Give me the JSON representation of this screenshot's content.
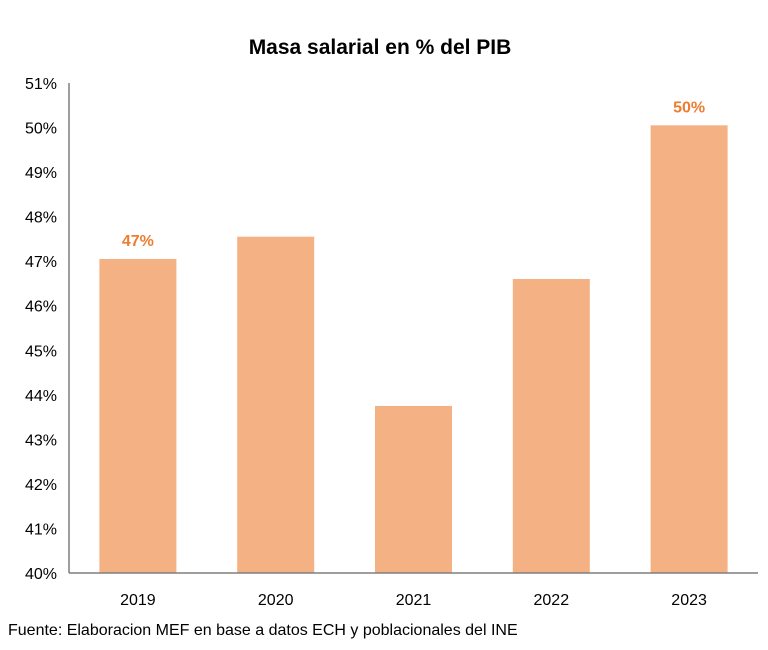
{
  "chart_data": {
    "type": "bar",
    "title": "Masa salarial en % del PIB",
    "xlabel": "",
    "ylabel": "",
    "categories": [
      "2019",
      "2020",
      "2021",
      "2022",
      "2023"
    ],
    "values": [
      47.05,
      47.55,
      43.75,
      46.6,
      50.05
    ],
    "data_labels": [
      {
        "category": "2019",
        "text": "47%"
      },
      {
        "category": "2023",
        "text": "50%"
      }
    ],
    "ylim": [
      40,
      51
    ],
    "y_ticks": [
      "40%",
      "41%",
      "42%",
      "43%",
      "44%",
      "45%",
      "46%",
      "47%",
      "48%",
      "49%",
      "50%",
      "51%"
    ],
    "grid": false,
    "legend": "none",
    "bar_color": "#F4B183",
    "label_color": "#ED7D31",
    "axis_color": "#7F7F7F"
  },
  "source": "Fuente: Elaboracion MEF en base a datos ECH y poblacionales del INE"
}
